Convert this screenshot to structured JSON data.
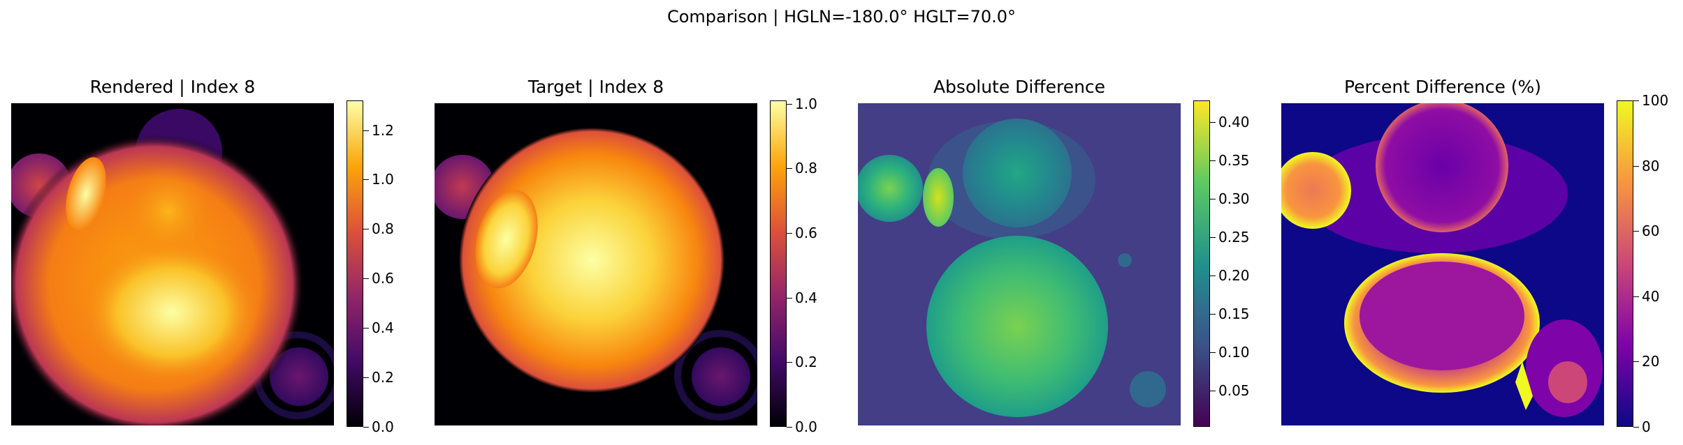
{
  "suptitle": "Comparison | HGLN=-180.0° HGLT=70.0°",
  "colors": {
    "inferno": [
      "#000004",
      "#420a68",
      "#932667",
      "#dd513a",
      "#fca50a",
      "#fcffa4"
    ],
    "viridis": [
      "#440154",
      "#3b528b",
      "#21918c",
      "#5ec962",
      "#fde725"
    ],
    "plasma": [
      "#0d0887",
      "#7e03a8",
      "#cc4778",
      "#f89540",
      "#f0f921"
    ]
  },
  "chart_data": [
    {
      "type": "heatmap",
      "title": "Rendered | Index 8",
      "colormap": "inferno",
      "colorbar": {
        "min": 0.0,
        "max": 1.32,
        "ticks": [
          "0.0",
          "0.2",
          "0.4",
          "0.6",
          "0.8",
          "1.0",
          "1.2"
        ]
      }
    },
    {
      "type": "heatmap",
      "title": "Target | Index 8",
      "colormap": "inferno",
      "colorbar": {
        "min": 0.0,
        "max": 1.01,
        "ticks": [
          "0.0",
          "0.2",
          "0.4",
          "0.6",
          "0.8",
          "1.0"
        ]
      }
    },
    {
      "type": "heatmap",
      "title": "Absolute Difference",
      "colormap": "viridis",
      "colorbar": {
        "min": 0.003,
        "max": 0.428,
        "ticks": [
          "0.05",
          "0.10",
          "0.15",
          "0.20",
          "0.25",
          "0.30",
          "0.35",
          "0.40"
        ]
      }
    },
    {
      "type": "heatmap",
      "title": "Percent Difference (%)",
      "colormap": "plasma",
      "colorbar": {
        "min": 0,
        "max": 100,
        "ticks": [
          "0",
          "20",
          "40",
          "60",
          "80",
          "100"
        ]
      }
    }
  ]
}
